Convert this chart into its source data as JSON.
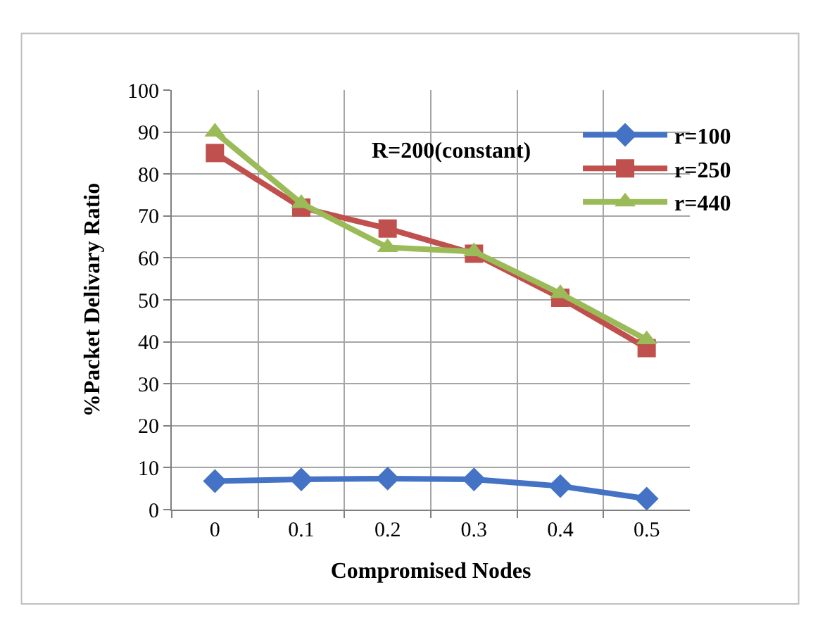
{
  "chart_data": {
    "type": "line",
    "xlabel": "Compromised Nodes",
    "ylabel": "%Packet Delivary Ratio",
    "categories": [
      "0",
      "0.1",
      "0.2",
      "0.3",
      "0.4",
      "0.5"
    ],
    "series": [
      {
        "name": "r=100",
        "color": "#4472c4",
        "marker": "diamond",
        "values": [
          6.8,
          7.2,
          7.4,
          7.2,
          5.6,
          2.6
        ]
      },
      {
        "name": "r=250",
        "color": "#c0504d",
        "marker": "square",
        "values": [
          85,
          72,
          67,
          61,
          50.5,
          38.5
        ]
      },
      {
        "name": "r=440",
        "color": "#9bbb59",
        "marker": "triangle",
        "values": [
          90,
          73,
          62.5,
          61.5,
          51.5,
          40.5
        ]
      }
    ],
    "annotations": [
      "R=200(constant)"
    ],
    "ylim": [
      0,
      100
    ],
    "yticks": [
      0,
      10,
      20,
      30,
      40,
      50,
      60,
      70,
      80,
      90,
      100
    ],
    "grid": true,
    "legend": "top right",
    "line_style": "solid"
  }
}
